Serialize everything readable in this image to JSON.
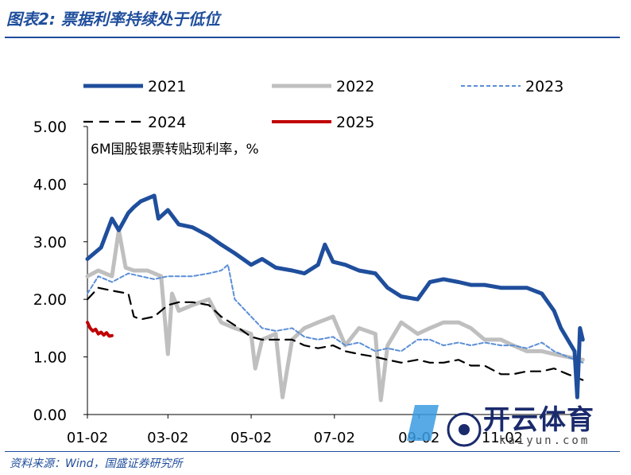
{
  "header": {
    "title": "图表2:  票据利率持续处于低位"
  },
  "footer": {
    "source": "资料来源：Wind，国盛证券研究所"
  },
  "watermark": {
    "text": "开云体育",
    "sub": "kaiyun.com"
  },
  "colors": {
    "s2021": "#1f4e9c",
    "s2022": "#bfbfbf",
    "s2023": "#5b8ed6",
    "s2024": "#000000",
    "s2025": "#c00000",
    "accent": "#1f4e9c"
  },
  "chart_data": {
    "type": "line",
    "title": "",
    "annotation": "6M国股银票转贴现利率，%",
    "ylim": [
      0,
      5
    ],
    "yticks": [
      "0.00",
      "1.00",
      "2.00",
      "3.00",
      "4.00",
      "5.00"
    ],
    "xticks": [
      "01-02",
      "03-02",
      "05-02",
      "07-02",
      "09-02",
      "11-02"
    ],
    "xlim_days": [
      0,
      365
    ],
    "legend_position": "top",
    "series": [
      {
        "name": "2021",
        "style": "solid-thick",
        "x": [
          "01-02",
          "01-12",
          "01-20",
          "01-25",
          "02-01",
          "02-05",
          "02-10",
          "02-20",
          "02-23",
          "03-02",
          "03-10",
          "03-20",
          "04-01",
          "04-10",
          "04-20",
          "05-02",
          "05-10",
          "05-20",
          "06-01",
          "06-10",
          "06-20",
          "06-25",
          "07-01",
          "07-10",
          "07-20",
          "08-01",
          "08-10",
          "08-20",
          "09-01",
          "09-10",
          "09-20",
          "10-01",
          "10-10",
          "10-20",
          "11-01",
          "11-10",
          "11-20",
          "12-01",
          "12-10",
          "12-15",
          "12-20",
          "12-25",
          "12-27",
          "12-29",
          "12-31"
        ],
        "y": [
          2.7,
          2.9,
          3.4,
          3.2,
          3.5,
          3.6,
          3.7,
          3.8,
          3.4,
          3.55,
          3.3,
          3.25,
          3.1,
          2.95,
          2.8,
          2.6,
          2.7,
          2.55,
          2.5,
          2.45,
          2.6,
          2.95,
          2.65,
          2.6,
          2.5,
          2.45,
          2.2,
          2.05,
          2.0,
          2.3,
          2.35,
          2.3,
          2.25,
          2.25,
          2.2,
          2.2,
          2.2,
          2.1,
          1.8,
          1.5,
          1.3,
          1.1,
          0.3,
          1.5,
          1.3
        ]
      },
      {
        "name": "2022",
        "style": "solid-thick-gray",
        "x": [
          "01-02",
          "01-10",
          "01-20",
          "01-25",
          "01-30",
          "02-05",
          "02-15",
          "02-25",
          "03-02",
          "03-05",
          "03-10",
          "03-20",
          "04-01",
          "04-10",
          "04-20",
          "05-02",
          "05-05",
          "05-10",
          "05-20",
          "05-25",
          "06-01",
          "06-10",
          "06-20",
          "07-01",
          "07-10",
          "07-20",
          "08-01",
          "08-05",
          "08-10",
          "08-20",
          "09-01",
          "09-10",
          "09-20",
          "10-01",
          "10-10",
          "10-20",
          "11-01",
          "11-10",
          "11-20",
          "12-01",
          "12-10",
          "12-20",
          "12-31"
        ],
        "y": [
          2.4,
          2.5,
          2.4,
          3.2,
          2.55,
          2.5,
          2.5,
          2.4,
          1.05,
          2.1,
          1.8,
          1.9,
          2.0,
          1.6,
          1.5,
          1.4,
          0.8,
          1.3,
          1.4,
          0.3,
          1.3,
          1.5,
          1.6,
          1.7,
          1.2,
          1.5,
          1.4,
          0.25,
          1.2,
          1.6,
          1.4,
          1.5,
          1.6,
          1.6,
          1.5,
          1.3,
          1.3,
          1.2,
          1.1,
          1.1,
          1.05,
          1.0,
          0.95
        ]
      },
      {
        "name": "2023",
        "style": "dashed-fine",
        "x": [
          "01-02",
          "01-10",
          "01-20",
          "02-01",
          "02-10",
          "02-20",
          "03-02",
          "03-10",
          "03-20",
          "04-01",
          "04-10",
          "04-15",
          "04-20",
          "05-02",
          "05-10",
          "05-20",
          "06-01",
          "06-10",
          "06-20",
          "07-01",
          "07-10",
          "07-20",
          "08-01",
          "08-10",
          "08-20",
          "09-01",
          "09-10",
          "09-20",
          "10-01",
          "10-10",
          "10-20",
          "11-01",
          "11-10",
          "11-20",
          "12-01",
          "12-10",
          "12-20",
          "12-31"
        ],
        "y": [
          2.1,
          2.4,
          2.3,
          2.45,
          2.4,
          2.35,
          2.4,
          2.4,
          2.4,
          2.45,
          2.5,
          2.6,
          2.0,
          1.7,
          1.5,
          1.45,
          1.5,
          1.35,
          1.3,
          1.35,
          1.2,
          1.25,
          1.1,
          1.15,
          1.1,
          1.3,
          1.3,
          1.2,
          1.25,
          1.2,
          1.25,
          1.2,
          1.2,
          1.15,
          1.25,
          1.1,
          1.0,
          0.9
        ]
      },
      {
        "name": "2024",
        "style": "dashed-thick",
        "x": [
          "01-02",
          "01-10",
          "01-20",
          "02-01",
          "02-05",
          "02-10",
          "02-20",
          "03-02",
          "03-10",
          "03-20",
          "04-01",
          "04-10",
          "04-20",
          "05-02",
          "05-10",
          "05-20",
          "06-01",
          "06-10",
          "06-20",
          "07-01",
          "07-10",
          "07-20",
          "08-01",
          "08-10",
          "08-20",
          "09-01",
          "09-10",
          "09-20",
          "10-01",
          "10-10",
          "10-20",
          "11-01",
          "11-10",
          "11-20",
          "12-01",
          "12-10",
          "12-20",
          "12-31"
        ],
        "y": [
          2.0,
          2.2,
          2.15,
          2.1,
          1.7,
          1.65,
          1.7,
          1.9,
          1.95,
          1.95,
          1.9,
          1.7,
          1.55,
          1.35,
          1.3,
          1.3,
          1.3,
          1.2,
          1.15,
          1.2,
          1.1,
          1.05,
          1.0,
          0.95,
          0.9,
          0.95,
          0.9,
          0.9,
          0.95,
          0.85,
          0.85,
          0.7,
          0.7,
          0.75,
          0.75,
          0.8,
          0.7,
          0.6
        ]
      },
      {
        "name": "2025",
        "style": "solid-thick-red",
        "x": [
          "01-02",
          "01-04",
          "01-06",
          "01-08",
          "01-10",
          "01-12",
          "01-14",
          "01-16",
          "01-18",
          "01-20"
        ],
        "y": [
          1.6,
          1.5,
          1.45,
          1.48,
          1.4,
          1.43,
          1.38,
          1.42,
          1.36,
          1.37
        ]
      }
    ]
  }
}
